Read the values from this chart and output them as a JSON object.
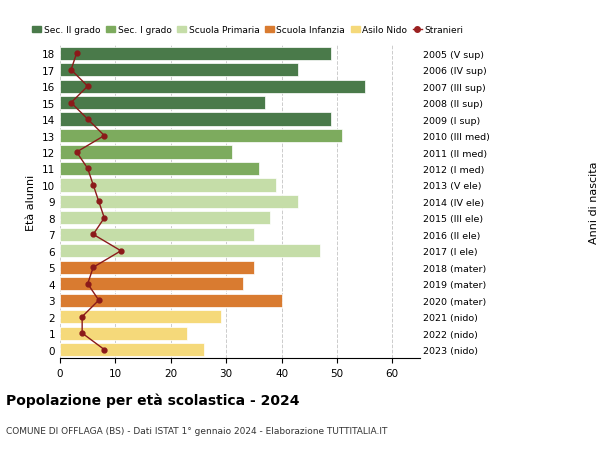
{
  "ages": [
    18,
    17,
    16,
    15,
    14,
    13,
    12,
    11,
    10,
    9,
    8,
    7,
    6,
    5,
    4,
    3,
    2,
    1,
    0
  ],
  "right_labels": [
    "2005 (V sup)",
    "2006 (IV sup)",
    "2007 (III sup)",
    "2008 (II sup)",
    "2009 (I sup)",
    "2010 (III med)",
    "2011 (II med)",
    "2012 (I med)",
    "2013 (V ele)",
    "2014 (IV ele)",
    "2015 (III ele)",
    "2016 (II ele)",
    "2017 (I ele)",
    "2018 (mater)",
    "2019 (mater)",
    "2020 (mater)",
    "2021 (nido)",
    "2022 (nido)",
    "2023 (nido)"
  ],
  "bar_values": [
    49,
    43,
    55,
    37,
    49,
    51,
    31,
    36,
    39,
    43,
    38,
    35,
    47,
    35,
    33,
    40,
    29,
    23,
    26
  ],
  "bar_colors": [
    "#4a7a4a",
    "#4a7a4a",
    "#4a7a4a",
    "#4a7a4a",
    "#4a7a4a",
    "#7dab5e",
    "#7dab5e",
    "#7dab5e",
    "#c5dda8",
    "#c5dda8",
    "#c5dda8",
    "#c5dda8",
    "#c5dda8",
    "#d97b30",
    "#d97b30",
    "#d97b30",
    "#f5d97a",
    "#f5d97a",
    "#f5d97a"
  ],
  "stranieri_values": [
    3,
    2,
    5,
    2,
    5,
    8,
    3,
    5,
    6,
    7,
    8,
    6,
    11,
    6,
    5,
    7,
    4,
    4,
    8
  ],
  "legend_labels": [
    "Sec. II grado",
    "Sec. I grado",
    "Scuola Primaria",
    "Scuola Infanzia",
    "Asilo Nido",
    "Stranieri"
  ],
  "legend_colors": [
    "#4a7a4a",
    "#7dab5e",
    "#c5dda8",
    "#d97b30",
    "#f5d97a",
    "#9b2020"
  ],
  "ylabel_left": "Età alunni",
  "ylabel_right": "Anni di nascita",
  "xlim": [
    0,
    65
  ],
  "xticks": [
    0,
    10,
    20,
    30,
    40,
    50,
    60
  ],
  "title": "Popolazione per età scolastica - 2024",
  "subtitle": "COMUNE DI OFFLAGA (BS) - Dati ISTAT 1° gennaio 2024 - Elaborazione TUTTITALIA.IT",
  "bg_color": "#ffffff",
  "grid_color": "#cccccc"
}
